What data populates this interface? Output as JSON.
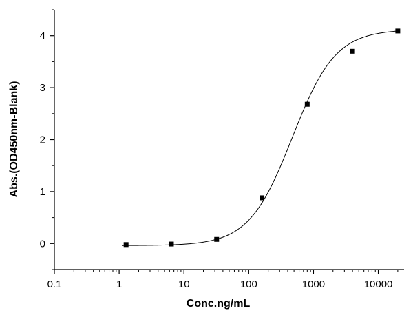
{
  "chart_data": {
    "type": "scatter",
    "title": "",
    "xlabel": "Conc.ng/mL",
    "ylabel": "Abs.(OD450nm-Blank)",
    "xscale": "log",
    "xlim": [
      0.1,
      25000
    ],
    "ylim": [
      -0.5,
      4.5
    ],
    "grid": false,
    "legend": "none",
    "x_ticks": [
      0.1,
      1,
      10,
      100,
      1000,
      10000
    ],
    "x_tick_labels": [
      "0.1",
      "1",
      "10",
      "100",
      "1000",
      "10000"
    ],
    "y_ticks": [
      0,
      1,
      2,
      3,
      4
    ],
    "y_tick_labels": [
      "0",
      "1",
      "2",
      "3",
      "4"
    ],
    "series": [
      {
        "marker": "square",
        "color": "#000000",
        "x": [
          1.28,
          6.4,
          32,
          160,
          800,
          4000,
          20000
        ],
        "y": [
          -0.02,
          -0.01,
          0.08,
          0.88,
          2.68,
          3.7,
          4.09
        ]
      }
    ],
    "fit_curve": {
      "model": "4PL",
      "bottom": -0.04,
      "top": 4.12,
      "ec50": 470,
      "hill": 1.3,
      "color": "#000000"
    }
  }
}
